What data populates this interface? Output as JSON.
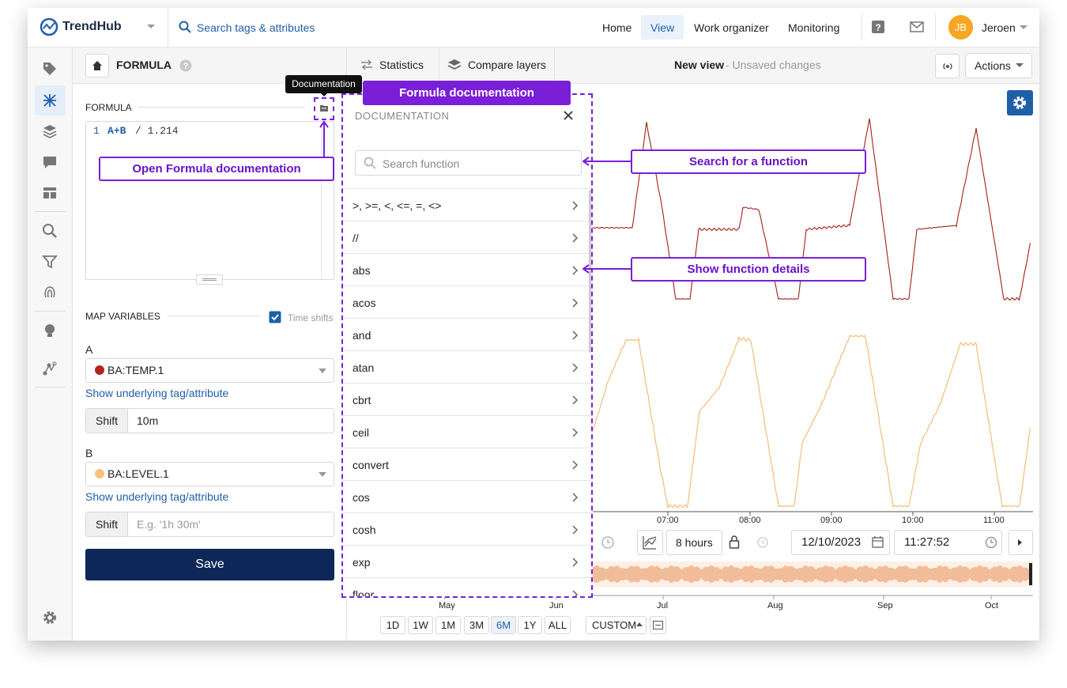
{
  "header": {
    "brand": "TrendHub",
    "search": "Search tags & attributes",
    "nav": [
      "Home",
      "View",
      "Work organizer",
      "Monitoring"
    ],
    "user_initials": "JB",
    "user_name": "Jeroen"
  },
  "toolbar": {
    "title": "FORMULA",
    "tabs": [
      "Statistics",
      "Compare layers"
    ],
    "view_name": "New view",
    "view_status": "- Unsaved changes",
    "actions": "Actions"
  },
  "formula_panel": {
    "section": "FORMULA",
    "line_number": "1",
    "code_vars": "A+B",
    "code_rest": "/ 1.214",
    "map_variables": "MAP VARIABLES",
    "time_shifts": "Time shifts",
    "variables": [
      {
        "letter": "A",
        "tag": "BA:TEMP.1",
        "link": "Show underlying tag/attribute",
        "shift_label": "Shift",
        "shift_value": "10m"
      },
      {
        "letter": "B",
        "tag": "BA:LEVEL.1",
        "link": "Show underlying tag/attribute",
        "shift_label": "Shift",
        "shift_placeholder": "E.g. '1h 30m'"
      }
    ],
    "save": "Save"
  },
  "tooltip": "Documentation",
  "documentation": {
    "title": "DOCUMENTATION",
    "search_placeholder": "Search function",
    "functions": [
      ">, >=, <, <=, =, <>",
      "//",
      "abs",
      "acos",
      "and",
      "atan",
      "cbrt",
      "ceil",
      "convert",
      "cos",
      "cosh",
      "exp",
      "floor"
    ]
  },
  "annotations": {
    "panel": "Formula documentation",
    "open": "Open Formula documentation",
    "search": "Search for a function",
    "details": "Show function details"
  },
  "chart": {
    "time_labels": [
      "07:00",
      "08:00",
      "09:00",
      "10:00",
      "11:00"
    ],
    "range": "8 hours",
    "date": "12/10/2023",
    "time": "11:27:52",
    "months": [
      "May",
      "Jun",
      "Jul",
      "Aug",
      "Sep",
      "Oct"
    ],
    "range_buttons": [
      "1D",
      "1W",
      "1M",
      "3M",
      "6M",
      "1Y",
      "ALL"
    ],
    "custom": "CUSTOM"
  }
}
